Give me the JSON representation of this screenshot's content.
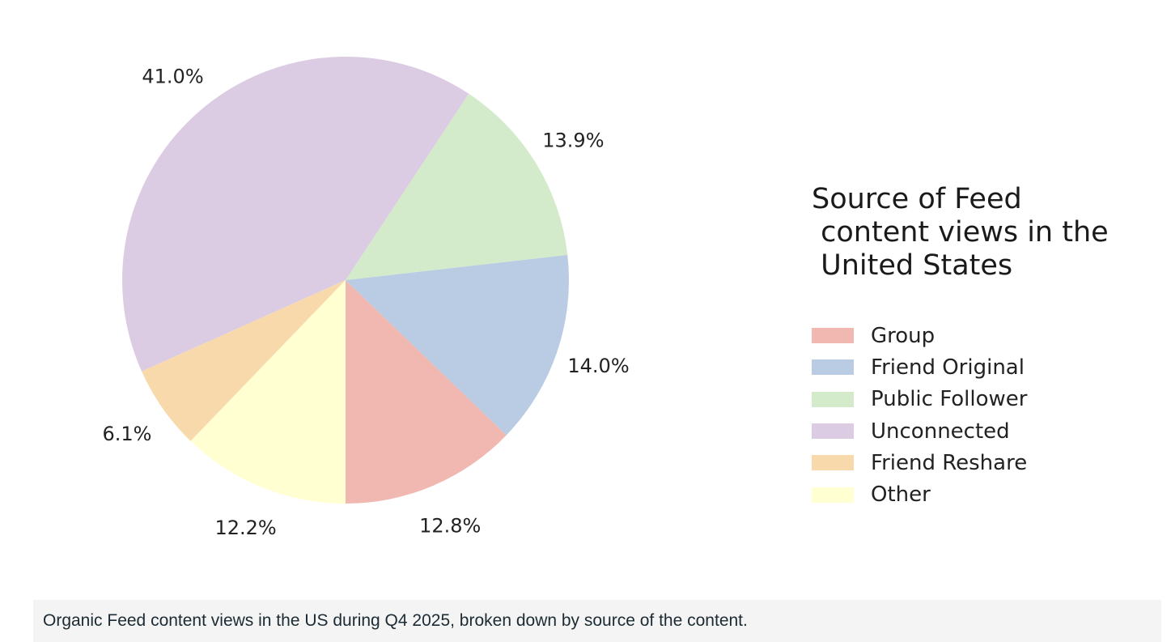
{
  "chart_data": {
    "type": "pie",
    "legend_title": "Source of Feed\n content views in the\n United States",
    "legend_position": "right",
    "start_angle_deg": 270,
    "direction": "counterclockwise",
    "slices": [
      {
        "name": "Group",
        "value": 12.8,
        "label": "12.8%",
        "color": "#f0b8b0"
      },
      {
        "name": "Friend Original",
        "value": 14.0,
        "label": "14.0%",
        "color": "#b9cce3"
      },
      {
        "name": "Public Follower",
        "value": 13.9,
        "label": "13.9%",
        "color": "#d3eacb"
      },
      {
        "name": "Unconnected",
        "value": 41.0,
        "label": "41.0%",
        "color": "#dccce3"
      },
      {
        "name": "Friend Reshare",
        "value": 6.1,
        "label": "6.1%",
        "color": "#f8d9ab"
      },
      {
        "name": "Other",
        "value": 12.2,
        "label": "12.2%",
        "color": "#ffffd1"
      }
    ]
  },
  "caption": "Organic Feed content views in the US during Q4 2025, broken down by source of the content."
}
